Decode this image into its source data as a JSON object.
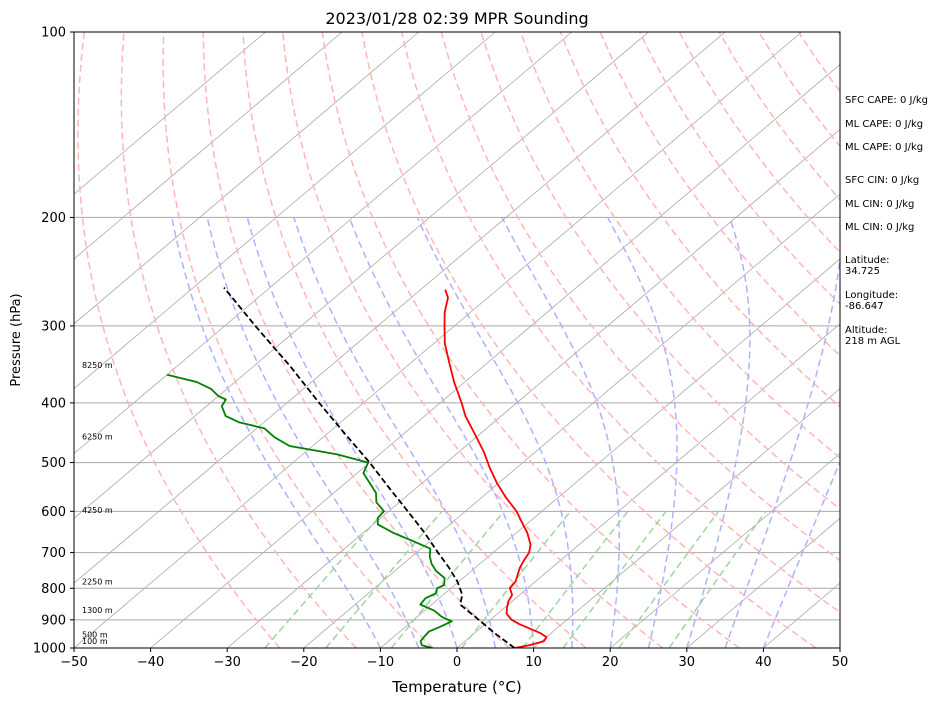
{
  "chart_data": {
    "type": "line",
    "title": "2023/01/28 02:39 MPR Sounding",
    "xlabel": "Temperature (°C)",
    "ylabel": "Pressure (hPa)",
    "xlim": [
      -50,
      50
    ],
    "ylim": [
      1000,
      100
    ],
    "y_scale": "log",
    "skew": true,
    "grid": true,
    "x_ticks": [
      -50,
      -40,
      -30,
      -20,
      -10,
      0,
      10,
      20,
      30,
      40,
      50
    ],
    "x_tick_labels": [
      "−50",
      "−40",
      "−30",
      "−20",
      "−10",
      "0",
      "10",
      "20",
      "30",
      "40",
      "50"
    ],
    "y_ticks": [
      1000,
      900,
      800,
      700,
      600,
      500,
      400,
      300,
      200,
      100
    ],
    "y_tick_labels": [
      "1000",
      "900",
      "800",
      "700",
      "600",
      "500",
      "400",
      "300",
      "200",
      "100"
    ],
    "series": [
      {
        "role": "temperature",
        "color": "#ff0000",
        "p": [
          1000,
          990,
          975,
          960,
          945,
          930,
          915,
          900,
          880,
          860,
          840,
          820,
          800,
          780,
          760,
          740,
          720,
          700,
          680,
          650,
          620,
          600,
          570,
          540,
          510,
          480,
          450,
          420,
          400,
          370,
          345,
          320,
          300,
          285,
          270,
          262
        ],
        "t": [
          7.5,
          9,
          10.3,
          10,
          8.5,
          6.5,
          4.5,
          2.8,
          1.2,
          0.3,
          -0.5,
          -1,
          -2.3,
          -2.6,
          -3.4,
          -4.2,
          -4.8,
          -5.3,
          -6.3,
          -8.6,
          -11.4,
          -13.3,
          -16.8,
          -20.2,
          -23.5,
          -26.8,
          -30.6,
          -34.7,
          -37.2,
          -41.4,
          -44.9,
          -48.6,
          -51.3,
          -53.4,
          -55.2,
          -56.8
        ]
      },
      {
        "role": "dewpoint",
        "color": "#008000",
        "p": [
          1000,
          990,
          975,
          960,
          940,
          925,
          905,
          890,
          870,
          850,
          830,
          815,
          800,
          790,
          770,
          750,
          730,
          710,
          690,
          670,
          650,
          630,
          615,
          600,
          580,
          560,
          540,
          520,
          500,
          485,
          470,
          455,
          440,
          430,
          420,
          405,
          395,
          390,
          380,
          370,
          360
        ],
        "t": [
          -3.2,
          -5,
          -5.8,
          -6,
          -6.2,
          -5.5,
          -4.8,
          -6.8,
          -8.7,
          -11.5,
          -11.8,
          -11.2,
          -11.8,
          -11.4,
          -12.4,
          -14.6,
          -16.3,
          -17.7,
          -18.8,
          -22.3,
          -26.1,
          -29.4,
          -30.4,
          -30.6,
          -33,
          -34.5,
          -36.8,
          -39.2,
          -40.2,
          -45.5,
          -53,
          -56.3,
          -59,
          -63.3,
          -66,
          -68,
          -68.5,
          -70,
          -72,
          -75,
          -80
        ]
      },
      {
        "role": "parcel",
        "color": "#000000",
        "style": "dashed",
        "p": [
          1000,
          950,
          900,
          850,
          820,
          780,
          740,
          700,
          650,
          600,
          550,
          500,
          450,
          400,
          350,
          300,
          260
        ],
        "t": [
          7.5,
          3,
          -1.5,
          -6.3,
          -7.5,
          -10.2,
          -13.5,
          -17.2,
          -22,
          -27.5,
          -33.5,
          -40,
          -47.5,
          -55.8,
          -65,
          -76,
          -86
        ]
      }
    ],
    "height_labels": [
      {
        "p": 975,
        "text": "100 m"
      },
      {
        "p": 951,
        "text": "500 m"
      },
      {
        "p": 868,
        "text": "1300 m"
      },
      {
        "p": 780,
        "text": "2250 m"
      },
      {
        "p": 597,
        "text": "4250 m"
      },
      {
        "p": 454,
        "text": "6250 m"
      },
      {
        "p": 347,
        "text": "8250 m"
      }
    ],
    "background_lines": {
      "isotherms_c": [
        -120,
        -110,
        -100,
        -90,
        -80,
        -70,
        -60,
        -50,
        -40,
        -30,
        -20,
        -10,
        0,
        10,
        20,
        30,
        40,
        50
      ],
      "dry_adiabats_k": [
        250,
        260,
        270,
        280,
        290,
        300,
        310,
        320,
        330,
        340,
        350,
        360,
        370,
        380,
        390,
        400,
        410,
        420,
        430,
        440,
        450
      ],
      "moist_adiabats_c": [
        -10,
        -5,
        0,
        5,
        10,
        15,
        20,
        25,
        30,
        35,
        40
      ],
      "mixing_ratios_gkg": [
        0.5,
        1,
        2,
        4,
        7,
        10,
        16,
        24
      ],
      "colors": {
        "isotherm": "#a9a9a9",
        "isobar": "#a9a9a9",
        "dry_adiabat": "#ffb6b6",
        "moist_adiabat": "#b0b0ff",
        "mixing_ratio": "#9fd49f"
      }
    }
  },
  "sidebar": {
    "sfc_cape": "SFC CAPE: 0 J/kg",
    "ml_cape_1": "ML CAPE: 0 J/kg",
    "ml_cape_2": "ML CAPE: 0 J/kg",
    "sfc_cin": "SFC CIN: 0 J/kg",
    "ml_cin_1": "ML CIN: 0 J/kg",
    "ml_cin_2": "ML CIN: 0 J/kg",
    "latitude_label": "Latitude:",
    "latitude_value": "34.725",
    "longitude_label": "Longitude:",
    "longitude_value": "-86.647",
    "altitude_label": "Altitude:",
    "altitude_value": "218 m AGL"
  }
}
